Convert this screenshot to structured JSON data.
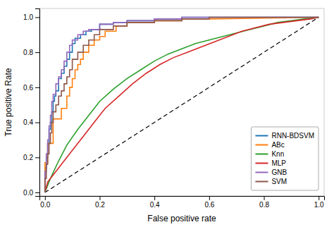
{
  "chart_data": {
    "type": "line",
    "xlabel": "False positive rate",
    "ylabel": "True positive Rate",
    "xlim": [
      -0.02,
      1.02
    ],
    "ylim": [
      -0.02,
      1.05
    ],
    "xticks": [
      {
        "value": 0.0,
        "label": "0.0"
      },
      0.2,
      0.4,
      0.6,
      0.8,
      {
        "value": 1.0,
        "label": "1.0"
      }
    ],
    "yticks": [
      {
        "value": 0.0,
        "label": "0.0"
      },
      0.2,
      0.4,
      0.6,
      0.8,
      {
        "value": 1.0,
        "label": "1.0"
      }
    ],
    "grid": false,
    "legend": "lower right",
    "series": [
      {
        "color": "black",
        "line_style": "dashed",
        "x": [
          0,
          1
        ],
        "values": [
          0,
          1
        ]
      },
      {
        "name": "RNN-BDSVM",
        "color": "#1f77b4",
        "x": [
          0.0,
          0.0,
          0.005,
          0.005,
          0.01,
          0.01,
          0.015,
          0.015,
          0.02,
          0.02,
          0.025,
          0.025,
          0.03,
          0.03,
          0.035,
          0.035,
          0.04,
          0.04,
          0.05,
          0.05,
          0.06,
          0.06,
          0.07,
          0.07,
          0.08,
          0.08,
          0.09,
          0.09,
          0.1,
          0.1,
          0.11,
          0.11,
          0.13,
          0.13,
          0.15,
          0.15,
          0.17,
          0.17,
          0.2,
          0.2,
          0.25,
          0.25,
          0.3,
          0.3,
          0.4,
          0.4,
          0.5,
          0.5,
          0.6,
          0.6,
          0.7,
          1.0
        ],
        "values": [
          0.0,
          0.14,
          0.14,
          0.2,
          0.2,
          0.28,
          0.28,
          0.36,
          0.36,
          0.4,
          0.4,
          0.46,
          0.46,
          0.52,
          0.52,
          0.55,
          0.55,
          0.58,
          0.58,
          0.65,
          0.65,
          0.68,
          0.68,
          0.72,
          0.72,
          0.76,
          0.76,
          0.8,
          0.8,
          0.85,
          0.85,
          0.88,
          0.88,
          0.9,
          0.9,
          0.92,
          0.92,
          0.93,
          0.93,
          0.96,
          0.96,
          0.97,
          0.97,
          0.98,
          0.98,
          0.99,
          0.99,
          1.0,
          1.0,
          1.0,
          1.0,
          1.0
        ]
      },
      {
        "name": "ABc",
        "color": "#ff7f0e",
        "x": [
          0.0,
          0.0,
          0.01,
          0.01,
          0.03,
          0.03,
          0.06,
          0.06,
          0.08,
          0.08,
          0.09,
          0.09,
          0.1,
          0.1,
          0.11,
          0.11,
          0.12,
          0.12,
          0.13,
          0.13,
          0.14,
          0.14,
          0.16,
          0.16,
          0.18,
          0.18,
          0.2,
          0.2,
          0.22,
          0.22,
          0.26,
          0.26,
          0.3,
          0.3,
          0.4,
          0.4,
          0.5,
          0.5,
          0.6,
          1.0
        ],
        "values": [
          0.0,
          0.17,
          0.17,
          0.28,
          0.28,
          0.42,
          0.42,
          0.48,
          0.48,
          0.55,
          0.55,
          0.6,
          0.6,
          0.65,
          0.65,
          0.7,
          0.7,
          0.73,
          0.73,
          0.76,
          0.76,
          0.8,
          0.8,
          0.84,
          0.84,
          0.87,
          0.87,
          0.89,
          0.89,
          0.92,
          0.92,
          0.95,
          0.95,
          0.97,
          0.97,
          0.98,
          0.98,
          0.99,
          0.99,
          1.0
        ]
      },
      {
        "name": "Knn",
        "color": "#2ca02c",
        "x": [
          0.0,
          0.005,
          0.02,
          0.05,
          0.08,
          0.12,
          0.16,
          0.2,
          0.25,
          0.3,
          0.35,
          0.4,
          0.45,
          0.5,
          0.55,
          0.6,
          0.65,
          0.7,
          0.75,
          0.8,
          0.85,
          0.9,
          0.95,
          1.0
        ],
        "values": [
          0.0,
          0.02,
          0.08,
          0.18,
          0.27,
          0.36,
          0.44,
          0.52,
          0.59,
          0.65,
          0.7,
          0.75,
          0.79,
          0.82,
          0.85,
          0.87,
          0.89,
          0.91,
          0.93,
          0.95,
          0.97,
          0.98,
          0.99,
          1.0
        ]
      },
      {
        "name": "MLP",
        "color": "#d62728",
        "x": [
          0.0,
          0.01,
          0.03,
          0.06,
          0.1,
          0.14,
          0.18,
          0.22,
          0.27,
          0.32,
          0.37,
          0.42,
          0.47,
          0.52,
          0.57,
          0.62,
          0.67,
          0.72,
          0.77,
          0.82,
          0.87,
          0.92,
          0.97,
          1.0
        ],
        "values": [
          0.0,
          0.06,
          0.1,
          0.16,
          0.24,
          0.32,
          0.4,
          0.48,
          0.55,
          0.62,
          0.68,
          0.73,
          0.77,
          0.8,
          0.83,
          0.86,
          0.89,
          0.92,
          0.94,
          0.96,
          0.97,
          0.98,
          0.99,
          1.0
        ]
      },
      {
        "name": "GNB",
        "color": "#9467bd",
        "x": [
          0.0,
          0.0,
          0.005,
          0.005,
          0.01,
          0.01,
          0.015,
          0.015,
          0.02,
          0.02,
          0.025,
          0.025,
          0.03,
          0.03,
          0.04,
          0.04,
          0.05,
          0.05,
          0.06,
          0.06,
          0.07,
          0.07,
          0.08,
          0.08,
          0.09,
          0.09,
          0.1,
          0.1,
          0.12,
          0.12,
          0.14,
          0.14,
          0.16,
          0.16,
          0.2,
          0.2,
          0.25,
          0.25,
          0.3,
          0.3,
          0.4,
          0.4,
          0.5,
          0.5,
          0.6,
          1.0
        ],
        "values": [
          0.0,
          0.12,
          0.12,
          0.22,
          0.22,
          0.3,
          0.3,
          0.38,
          0.38,
          0.44,
          0.44,
          0.52,
          0.52,
          0.56,
          0.56,
          0.62,
          0.62,
          0.66,
          0.66,
          0.7,
          0.7,
          0.75,
          0.75,
          0.8,
          0.8,
          0.84,
          0.84,
          0.87,
          0.87,
          0.9,
          0.9,
          0.92,
          0.92,
          0.93,
          0.93,
          0.96,
          0.96,
          0.97,
          0.97,
          0.98,
          0.98,
          0.99,
          0.99,
          1.0,
          1.0,
          1.0
        ]
      },
      {
        "name": "SVM",
        "color": "#8c564b",
        "x": [
          0.0,
          0.0,
          0.005,
          0.005,
          0.01,
          0.01,
          0.015,
          0.015,
          0.02,
          0.02,
          0.025,
          0.025,
          0.03,
          0.03,
          0.04,
          0.04,
          0.05,
          0.05,
          0.06,
          0.06,
          0.07,
          0.07,
          0.08,
          0.08,
          0.09,
          0.09,
          0.1,
          0.1,
          0.12,
          0.12,
          0.14,
          0.14,
          0.16,
          0.16,
          0.18,
          0.18,
          0.2,
          0.2,
          0.25,
          0.25,
          0.3,
          0.3,
          0.4,
          0.4,
          0.5,
          0.5,
          0.6,
          0.6,
          0.7,
          1.0
        ],
        "values": [
          0.0,
          0.08,
          0.08,
          0.16,
          0.16,
          0.22,
          0.22,
          0.28,
          0.28,
          0.34,
          0.34,
          0.4,
          0.4,
          0.46,
          0.46,
          0.5,
          0.5,
          0.55,
          0.55,
          0.58,
          0.58,
          0.62,
          0.62,
          0.66,
          0.66,
          0.7,
          0.7,
          0.76,
          0.76,
          0.8,
          0.8,
          0.84,
          0.84,
          0.87,
          0.87,
          0.9,
          0.9,
          0.93,
          0.93,
          0.95,
          0.95,
          0.97,
          0.97,
          0.98,
          0.98,
          0.99,
          0.99,
          1.0,
          1.0,
          1.0
        ]
      }
    ]
  }
}
